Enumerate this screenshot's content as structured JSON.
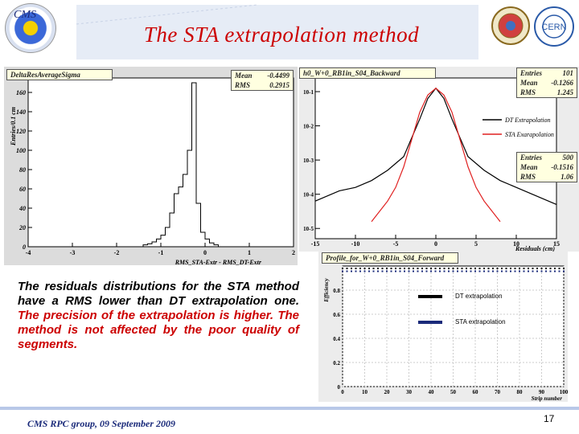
{
  "slide": {
    "title": "The STA extrapolation method",
    "footer": "CMS RPC  group, 09 September 2009",
    "page_number": "17",
    "body_black": "The residuals distributions for the STA method have a RMS lower than DT extrapolation one.",
    "body_red": "The precision of the extrapolation is higher. The method is not affected by the poor quality of segments.",
    "logo_text": "CMS"
  },
  "colors": {
    "title": "#cc0000",
    "footer": "#1a2a7a",
    "band": "#e6ecf6",
    "red_hist": "#e02020"
  },
  "chart_data": [
    {
      "type": "bar",
      "title": "DeltaResAverageSigma",
      "stats": [
        {
          "label": "Mean",
          "value": "-0.4499"
        },
        {
          "label": "RMS",
          "value": "0.2915"
        }
      ],
      "xlabel": "RMS_STA-Extr - RMS_DT-Extr",
      "ylabel": "Entries/0.1 cm",
      "xlim": [
        -4,
        2
      ],
      "ylim": [
        0,
        175
      ],
      "xticks": [
        "-4",
        "-3",
        "-2",
        "-1",
        "0",
        "1",
        "2"
      ],
      "yticks": [
        "0",
        "20",
        "40",
        "60",
        "80",
        "100",
        "120",
        "140",
        "160"
      ],
      "bins_x": [
        -1.4,
        -1.3,
        -1.2,
        -1.1,
        -1.0,
        -0.9,
        -0.8,
        -0.7,
        -0.6,
        -0.5,
        -0.4,
        -0.3,
        -0.2,
        -0.1,
        0.0,
        0.1,
        0.2
      ],
      "bins_y": [
        2,
        3,
        5,
        8,
        12,
        20,
        35,
        55,
        62,
        75,
        100,
        170,
        45,
        15,
        8,
        4,
        2
      ]
    },
    {
      "type": "line",
      "title": "h0_W+0_RB1in_S04_Backward",
      "stats_dt": [
        {
          "label": "Entries",
          "value": "101"
        },
        {
          "label": "Mean",
          "value": "-0.1266"
        },
        {
          "label": "RMS",
          "value": "1.245"
        }
      ],
      "stats_sta": [
        {
          "label": "Entries",
          "value": "500"
        },
        {
          "label": "Mean",
          "value": "-0.1516"
        },
        {
          "label": "RMS",
          "value": "1.06"
        }
      ],
      "legend": [
        "DT Extrapolation",
        "STA Exarapolation"
      ],
      "xlabel": "Residuals (cm)",
      "xticks": [
        "-15",
        "-10",
        "-5",
        "0",
        "5",
        "10",
        "15"
      ],
      "yticks": [
        "10^-5",
        "10^-4",
        "10^-3",
        "10^-2",
        "10^-1"
      ],
      "log_y": true,
      "xlim": [
        -15,
        15
      ],
      "series": [
        {
          "color": "#000000",
          "x": [
            -15,
            -12,
            -10,
            -8,
            -6,
            -4,
            -2,
            -1,
            0,
            1,
            2,
            4,
            6,
            8,
            10,
            12,
            15
          ],
          "y_log10": [
            -4.2,
            -3.9,
            -3.8,
            -3.6,
            -3.3,
            -2.9,
            -1.8,
            -1.2,
            -0.9,
            -1.2,
            -1.8,
            -2.9,
            -3.3,
            -3.6,
            -3.8,
            -4.0,
            -4.3
          ]
        },
        {
          "color": "#e02020",
          "x": [
            -8,
            -6,
            -5,
            -4,
            -3,
            -2,
            -1,
            0,
            1,
            2,
            3,
            4,
            5,
            6,
            8
          ],
          "y_log10": [
            -4.8,
            -4.2,
            -3.8,
            -3.2,
            -2.4,
            -1.6,
            -1.1,
            -0.9,
            -1.1,
            -1.6,
            -2.4,
            -3.2,
            -3.8,
            -4.2,
            -4.8
          ]
        }
      ]
    },
    {
      "type": "scatter",
      "title": "Profile_for_W+0_RB1in_S04_Forward",
      "ylabel": "Efficiency",
      "xlabel": "Strip number",
      "xticks": [
        "0",
        "10",
        "20",
        "30",
        "40",
        "50",
        "60",
        "70",
        "80",
        "90",
        "100"
      ],
      "yticks": [
        "0",
        "0.2",
        "0.4",
        "0.6",
        "0.8"
      ],
      "ylim": [
        0,
        1
      ],
      "xlim": [
        0,
        100
      ],
      "legend": [
        "DT extrapolation",
        "STA extrapolation"
      ],
      "series": [
        {
          "name": "DT extrapolation",
          "color": "#000000",
          "level": 0.98
        },
        {
          "name": "STA extrapolation",
          "color": "#1a2a7a",
          "level": 0.97
        }
      ]
    }
  ]
}
